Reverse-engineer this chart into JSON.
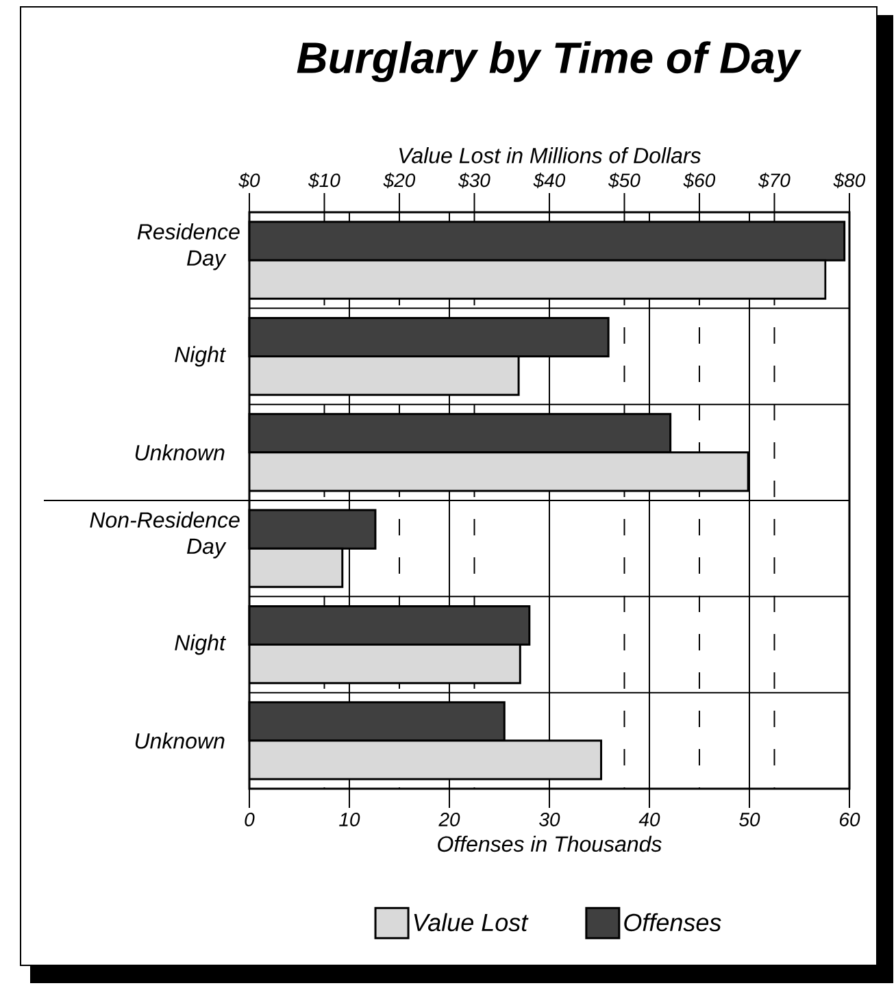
{
  "chart_data": {
    "type": "bar",
    "orientation": "horizontal",
    "title": "Burglary by Time of Day",
    "xlabel": "Offenses in Thousands",
    "x2label": "Value Lost in Millions of Dollars",
    "categories": [
      "Day",
      "Night",
      "Unknown",
      "Day",
      "Night",
      "Unknown"
    ],
    "annotations": [
      "Residence",
      "Non-Residence"
    ],
    "series": [
      {
        "name": "Value Lost",
        "color": "#d9d9d9",
        "axis": "x2",
        "values": [
          76.8,
          35.9,
          66.5,
          12.4,
          36.1,
          46.9
        ]
      },
      {
        "name": "Offenses",
        "color": "#404040",
        "values": [
          59.5,
          35.9,
          42.1,
          12.6,
          28.0,
          25.5
        ]
      }
    ],
    "xlim": [
      0,
      60
    ],
    "xticks": [
      0,
      10,
      20,
      30,
      40,
      50,
      60
    ],
    "x2lim": [
      0,
      80
    ],
    "x2ticks": [
      {
        "value": 0,
        "label": "$0"
      },
      {
        "value": 10,
        "label": "$10"
      },
      {
        "value": 20,
        "label": "$20"
      },
      {
        "value": 30,
        "label": "$30"
      },
      {
        "value": 40,
        "label": "$40"
      },
      {
        "value": 50,
        "label": "$50"
      },
      {
        "value": 60,
        "label": "$60"
      },
      {
        "value": 70,
        "label": "$70"
      },
      {
        "value": 80,
        "label": "$80"
      }
    ],
    "grid": true,
    "legend": "bottom"
  }
}
